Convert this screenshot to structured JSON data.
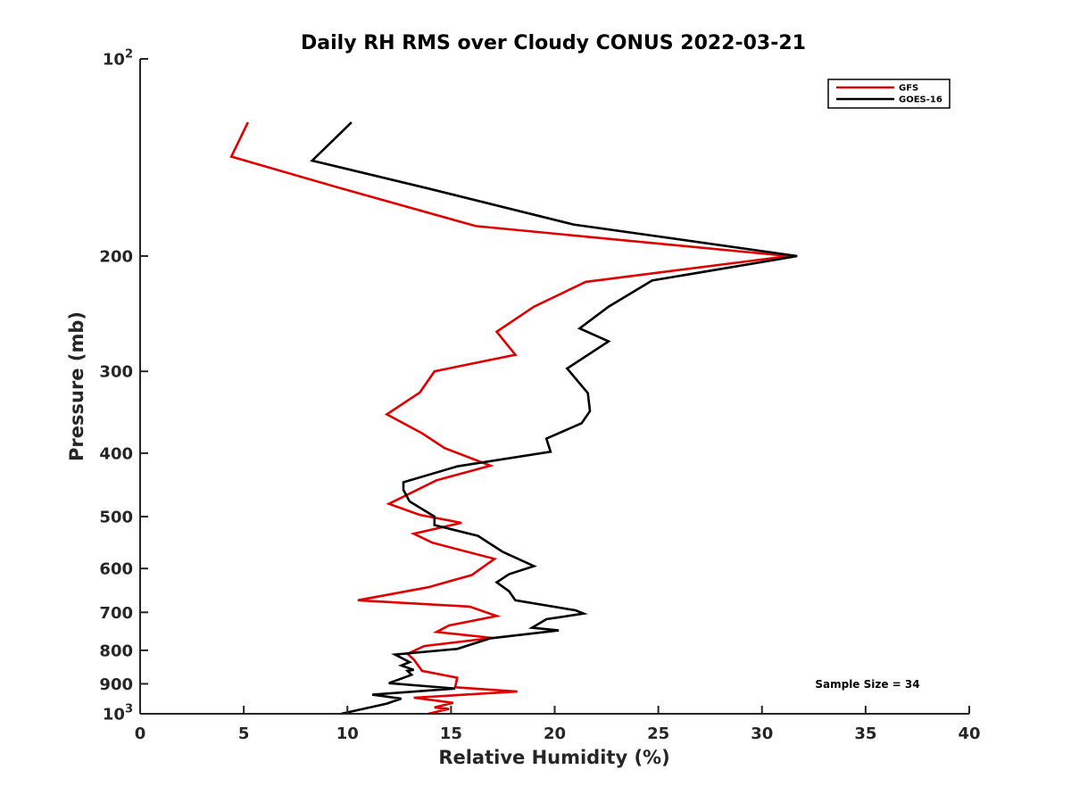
{
  "chart_data": {
    "type": "line",
    "title": "Daily RH RMS over Cloudy CONUS 2022-03-21",
    "xlabel": "Relative Humidity (%)",
    "ylabel": "Pressure (mb)",
    "xlim": [
      0,
      40
    ],
    "ylim": [
      100,
      1000
    ],
    "y_scale": "log",
    "y_reversed": true,
    "grid": false,
    "legend_position": "top-right",
    "x_ticks": [
      "0",
      "5",
      "10",
      "15",
      "20",
      "25",
      "30",
      "35",
      "40"
    ],
    "y_ticks": [
      {
        "value": 100,
        "base": "10",
        "sup": "2"
      },
      {
        "value": 200,
        "base": "200",
        "sup": ""
      },
      {
        "value": 300,
        "base": "300",
        "sup": ""
      },
      {
        "value": 400,
        "base": "400",
        "sup": ""
      },
      {
        "value": 500,
        "base": "500",
        "sup": ""
      },
      {
        "value": 600,
        "base": "600",
        "sup": ""
      },
      {
        "value": 700,
        "base": "700",
        "sup": ""
      },
      {
        "value": 800,
        "base": "800",
        "sup": ""
      },
      {
        "value": 900,
        "base": "900",
        "sup": ""
      },
      {
        "value": 1000,
        "base": "10",
        "sup": "3"
      }
    ],
    "annotation": "Sample Size = 34",
    "series": [
      {
        "name": "GFS",
        "color": "#e00000",
        "points": [
          [
            5.2,
            125
          ],
          [
            4.4,
            141
          ],
          [
            9.8,
            158
          ],
          [
            16.2,
            180
          ],
          [
            31.3,
            200
          ],
          [
            21.5,
            219
          ],
          [
            19.0,
            239
          ],
          [
            17.2,
            261
          ],
          [
            18.1,
            283
          ],
          [
            14.2,
            300
          ],
          [
            13.5,
            323
          ],
          [
            11.9,
            349
          ],
          [
            13.6,
            373
          ],
          [
            14.7,
            393
          ],
          [
            16.9,
            418
          ],
          [
            14.3,
            440
          ],
          [
            12.0,
            478
          ],
          [
            13.5,
            497
          ],
          [
            15.5,
            511
          ],
          [
            13.2,
            531
          ],
          [
            14.1,
            548
          ],
          [
            17.1,
            580
          ],
          [
            16.0,
            614
          ],
          [
            13.9,
            641
          ],
          [
            10.5,
            671
          ],
          [
            15.9,
            686
          ],
          [
            17.2,
            709
          ],
          [
            14.9,
            733
          ],
          [
            14.3,
            750
          ],
          [
            17.0,
            766
          ],
          [
            13.7,
            788
          ],
          [
            12.9,
            810
          ],
          [
            13.2,
            826
          ],
          [
            13.6,
            860
          ],
          [
            15.3,
            881
          ],
          [
            15.2,
            911
          ],
          [
            18.2,
            925
          ],
          [
            13.2,
            945
          ],
          [
            15.1,
            962
          ],
          [
            14.2,
            978
          ],
          [
            14.9,
            983
          ],
          [
            13.9,
            1000
          ]
        ]
      },
      {
        "name": "GOES-16",
        "color": "#000000",
        "points": [
          [
            10.2,
            125
          ],
          [
            8.3,
            143
          ],
          [
            14.0,
            158
          ],
          [
            20.9,
            179
          ],
          [
            31.7,
            200
          ],
          [
            24.7,
            218
          ],
          [
            22.6,
            239
          ],
          [
            21.2,
            258
          ],
          [
            22.6,
            270
          ],
          [
            20.6,
            297
          ],
          [
            21.6,
            324
          ],
          [
            21.7,
            345
          ],
          [
            21.3,
            360
          ],
          [
            19.6,
            380
          ],
          [
            19.8,
            398
          ],
          [
            15.3,
            419
          ],
          [
            12.7,
            443
          ],
          [
            12.7,
            455
          ],
          [
            13.0,
            474
          ],
          [
            14.2,
            500
          ],
          [
            14.2,
            515
          ],
          [
            16.3,
            535
          ],
          [
            17.5,
            566
          ],
          [
            19.0,
            595
          ],
          [
            17.8,
            612
          ],
          [
            17.2,
            630
          ],
          [
            17.8,
            650
          ],
          [
            18.1,
            671
          ],
          [
            21.0,
            695
          ],
          [
            21.4,
            703
          ],
          [
            19.6,
            717
          ],
          [
            18.9,
            739
          ],
          [
            20.2,
            746
          ],
          [
            16.9,
            767
          ],
          [
            15.3,
            796
          ],
          [
            12.3,
            812
          ],
          [
            13.0,
            834
          ],
          [
            12.6,
            844
          ],
          [
            13.2,
            857
          ],
          [
            12.9,
            860
          ],
          [
            13.1,
            872
          ],
          [
            12.0,
            898
          ],
          [
            15.2,
            915
          ],
          [
            11.2,
            935
          ],
          [
            12.6,
            948
          ],
          [
            11.9,
            965
          ],
          [
            9.7,
            1000
          ]
        ]
      }
    ]
  }
}
